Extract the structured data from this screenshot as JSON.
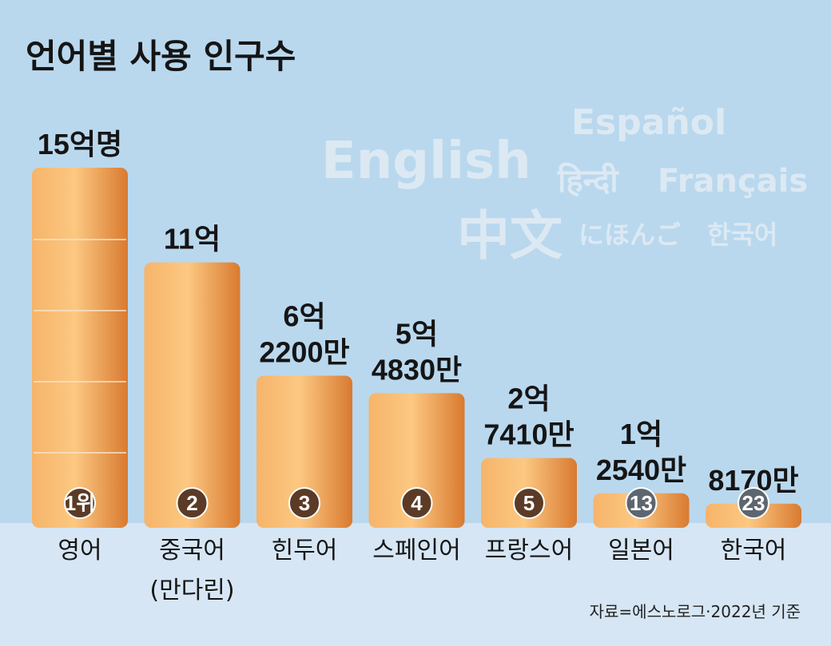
{
  "title": "언어별 사용 인구수",
  "decorative_words": [
    "English",
    "Español",
    "हिन्दी",
    "Français",
    "中文",
    "にほんご",
    "한국어"
  ],
  "source": "자료=에스노로그·2022년 기준",
  "colors": {
    "background": "#b9d8ee",
    "baseline_band": "#d6e6f4",
    "bar_light": "#fbc57d",
    "bar_dark": "#dc7e33",
    "rank_top7": "#5b3b26",
    "rank_other": "#5d6670"
  },
  "chart_data": {
    "type": "bar",
    "title": "언어별 사용 인구수",
    "categories": [
      "영어",
      "중국어(만다린)",
      "힌두어",
      "스페인어",
      "프랑스어",
      "일본어",
      "한국어"
    ],
    "category_lines": [
      [
        "영어"
      ],
      [
        "중국어",
        "(만다린)"
      ],
      [
        "힌두어"
      ],
      [
        "스페인어"
      ],
      [
        "프랑스어"
      ],
      [
        "일본어"
      ],
      [
        "한국어"
      ]
    ],
    "values": [
      1500000000,
      1100000000,
      622000000,
      548300000,
      274100000,
      125400000,
      81700000
    ],
    "value_labels": [
      [
        "15억명"
      ],
      [
        "11억"
      ],
      [
        "6억",
        "2200만"
      ],
      [
        "5억",
        "4830만"
      ],
      [
        "2억",
        "7410만"
      ],
      [
        "1억",
        "2540만"
      ],
      [
        "8170만"
      ]
    ],
    "ranks": [
      "1위",
      "2",
      "3",
      "4",
      "5",
      "13",
      "23"
    ],
    "unit": "명",
    "ylim": [
      0,
      1500000000
    ],
    "grid": false,
    "legend": "none"
  }
}
